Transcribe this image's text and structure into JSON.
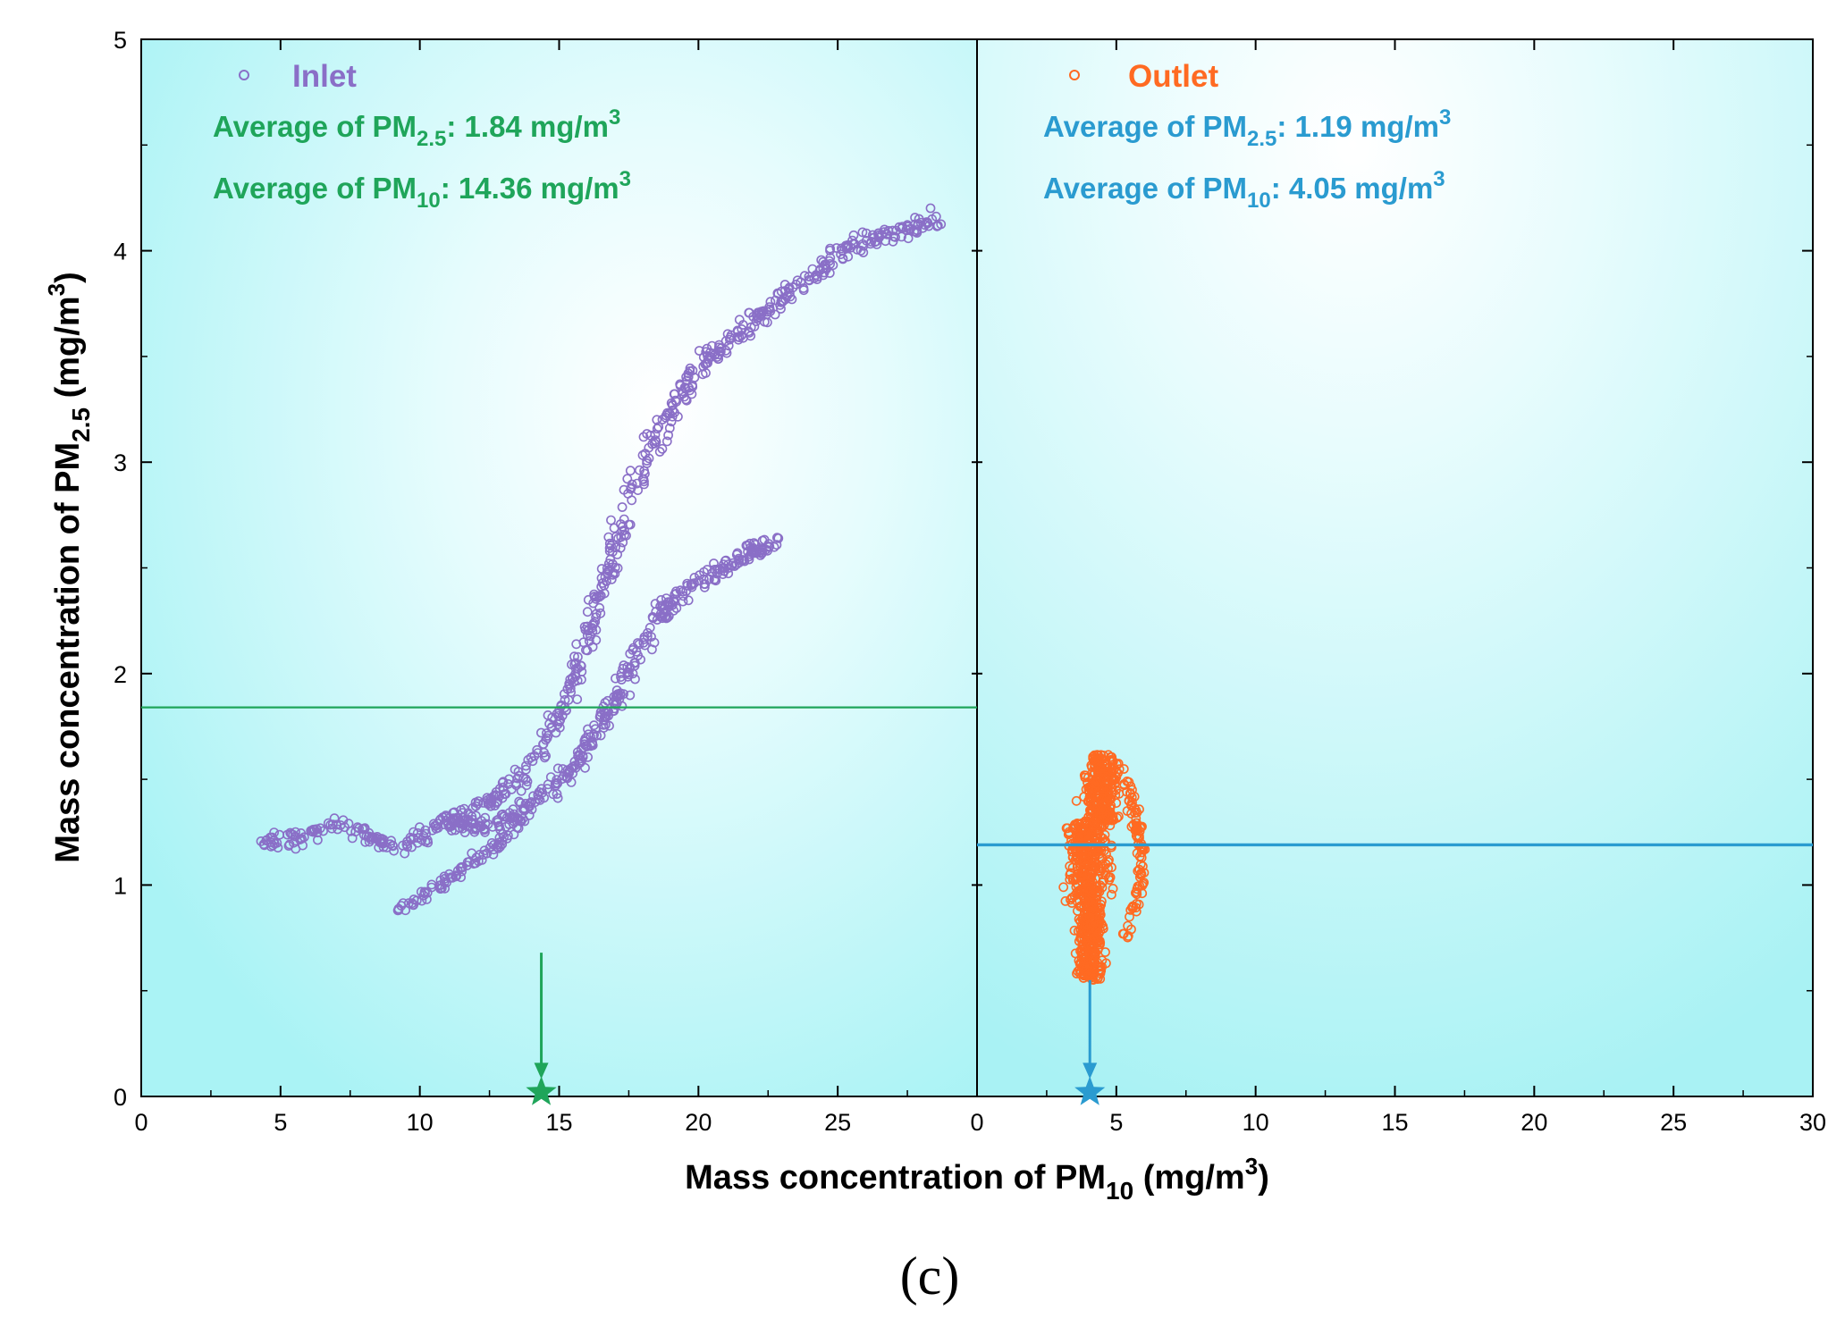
{
  "chart_data": {
    "type": "scatter",
    "xlabel": "Mass concentration of PM10 (mg/m3)",
    "ylabel": "Mass concentration of PM2.5 (mg/m3)",
    "xlabel_parts": {
      "pre": "Mass concentration of PM",
      "sub": "10",
      "mid": " (mg/m",
      "sup": "3",
      "post": ")"
    },
    "ylabel_parts": {
      "pre": "Mass concentration of PM",
      "sub": "2.5",
      "mid": " (mg/m",
      "sup": "3",
      "post": ")"
    },
    "ylim": [
      0,
      5
    ],
    "y_ticks": [
      "0",
      "1",
      "2",
      "3",
      "4",
      "5"
    ],
    "panel_label": "(c)",
    "panels": [
      {
        "name": "Inlet",
        "series_color": "#8A6FC7",
        "annotation_color": "#1FA55A",
        "xlim": [
          0,
          30
        ],
        "x_ticks": [
          "0",
          "5",
          "10",
          "15",
          "20",
          "25"
        ],
        "avg_pm25": 1.84,
        "avg_pm10": 14.36,
        "annotation_lines": [
          {
            "pre": "Average of PM",
            "sub": "2.5",
            "mid": ": 1.84 mg/m",
            "sup": "3"
          },
          {
            "pre": "Average of PM",
            "sub": "10",
            "mid": ": 14.36 mg/m",
            "sup": "3"
          }
        ],
        "path": [
          [
            4.5,
            1.22
          ],
          [
            5.0,
            1.2
          ],
          [
            6.0,
            1.24
          ],
          [
            7.0,
            1.29
          ],
          [
            8.0,
            1.25
          ],
          [
            9.0,
            1.18
          ],
          [
            10.0,
            1.22
          ],
          [
            10.8,
            1.3
          ],
          [
            11.8,
            1.35
          ],
          [
            12.8,
            1.42
          ],
          [
            13.5,
            1.5
          ],
          [
            14.2,
            1.62
          ],
          [
            14.8,
            1.75
          ],
          [
            15.3,
            1.86
          ],
          [
            15.8,
            2.05
          ],
          [
            16.3,
            2.3
          ],
          [
            16.9,
            2.55
          ],
          [
            17.6,
            2.85
          ],
          [
            18.5,
            3.12
          ],
          [
            19.5,
            3.35
          ],
          [
            20.5,
            3.52
          ],
          [
            21.5,
            3.62
          ],
          [
            22.3,
            3.7
          ],
          [
            23.2,
            3.8
          ],
          [
            24.2,
            3.88
          ],
          [
            25.0,
            3.98
          ],
          [
            26.0,
            4.04
          ],
          [
            27.0,
            4.08
          ],
          [
            28.0,
            4.13
          ],
          [
            28.6,
            4.15
          ]
        ],
        "branch_path": [
          [
            10.8,
            1.3
          ],
          [
            12.5,
            1.28
          ],
          [
            14.0,
            1.38
          ],
          [
            15.5,
            1.55
          ],
          [
            16.5,
            1.75
          ],
          [
            17.3,
            1.95
          ],
          [
            18.0,
            2.15
          ],
          [
            18.8,
            2.32
          ],
          [
            19.8,
            2.42
          ],
          [
            20.8,
            2.5
          ],
          [
            21.8,
            2.57
          ],
          [
            22.5,
            2.61
          ],
          [
            22.9,
            2.63
          ]
        ],
        "lower_path": [
          [
            9.0,
            0.88
          ],
          [
            10.0,
            0.94
          ],
          [
            11.0,
            1.02
          ],
          [
            12.0,
            1.12
          ],
          [
            13.0,
            1.22
          ],
          [
            13.8,
            1.32
          ]
        ]
      },
      {
        "name": "Outlet",
        "series_color": "#FF6A22",
        "annotation_color": "#2A9BD0",
        "xlim": [
          0,
          30
        ],
        "x_ticks": [
          "0",
          "5",
          "10",
          "15",
          "20",
          "25",
          "30"
        ],
        "avg_pm25": 1.19,
        "avg_pm10": 4.05,
        "annotation_lines": [
          {
            "pre": "Average of PM",
            "sub": "2.5",
            "mid": ": 1.19 mg/m",
            "sup": "3"
          },
          {
            "pre": "Average of PM",
            "sub": "10",
            "mid": ": 4.05 mg/m",
            "sup": "3"
          }
        ],
        "cluster": {
          "x_range": [
            2.0,
            6.4
          ],
          "y_range": [
            0.55,
            1.62
          ],
          "center": [
            4.0,
            1.15
          ]
        }
      }
    ]
  }
}
